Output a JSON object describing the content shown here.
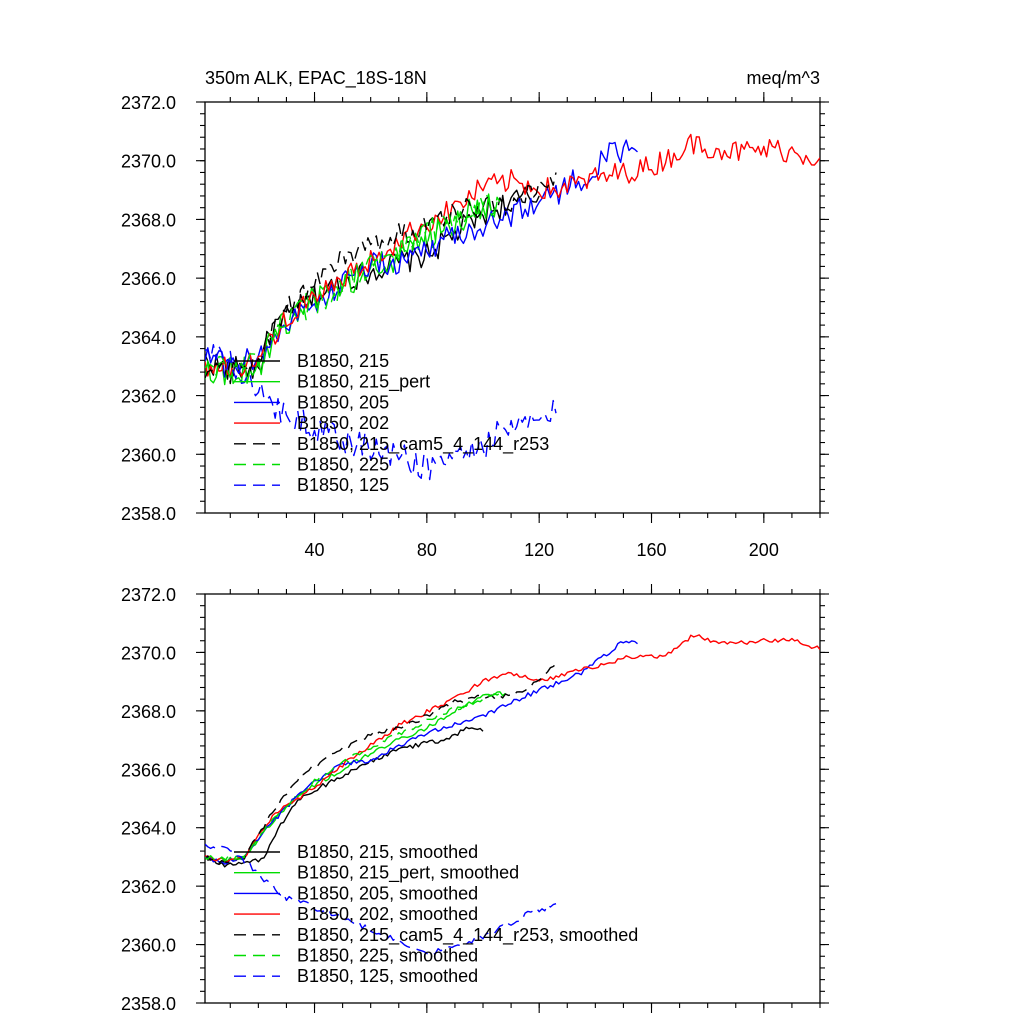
{
  "chart_data": [
    {
      "type": "line",
      "title_left": "350m ALK, EPAC_18S-18N",
      "title_right": "meq/m^3",
      "xlim": [
        1,
        220
      ],
      "ylim": [
        2358.0,
        2372.0
      ],
      "x_ticks": [
        40,
        80,
        120,
        160,
        200
      ],
      "x_tick_labels": [
        "40",
        "80",
        "120",
        "160",
        "200"
      ],
      "y_ticks": [
        2358.0,
        2360.0,
        2362.0,
        2364.0,
        2366.0,
        2368.0,
        2370.0,
        2372.0
      ],
      "y_tick_labels": [
        "2358.0",
        "2360.0",
        "2362.0",
        "2364.0",
        "2366.0",
        "2368.0",
        "2370.0",
        "2372.0"
      ],
      "legend_position": "bottom-left",
      "series": [
        {
          "name": "B1850, 215",
          "color": "#000000",
          "dash": "solid",
          "noise": 0.45,
          "points": [
            [
              1,
              2363.2
            ],
            [
              10,
              2362.9
            ],
            [
              20,
              2362.9
            ],
            [
              25,
              2364.3
            ],
            [
              35,
              2365.0
            ],
            [
              50,
              2365.9
            ],
            [
              65,
              2366.4
            ],
            [
              80,
              2366.8
            ],
            [
              90,
              2367.5
            ],
            [
              100,
              2368.2
            ],
            [
              110,
              2368.6
            ],
            [
              120,
              2368.8
            ]
          ]
        },
        {
          "name": "B1850, 215_pert",
          "color": "#00dd00",
          "dash": "solid",
          "noise": 0.5,
          "points": [
            [
              1,
              2363.0
            ],
            [
              10,
              2362.8
            ],
            [
              20,
              2363.0
            ],
            [
              28,
              2364.3
            ],
            [
              40,
              2365.3
            ],
            [
              55,
              2366.0
            ],
            [
              70,
              2366.8
            ],
            [
              85,
              2367.7
            ],
            [
              95,
              2368.2
            ],
            [
              105,
              2368.6
            ]
          ]
        },
        {
          "name": "B1850, 205",
          "color": "#0000ff",
          "dash": "solid",
          "noise": 0.45,
          "points": [
            [
              1,
              2363.3
            ],
            [
              10,
              2363.0
            ],
            [
              20,
              2363.3
            ],
            [
              30,
              2364.5
            ],
            [
              45,
              2365.4
            ],
            [
              55,
              2366.4
            ],
            [
              70,
              2366.5
            ],
            [
              85,
              2367.3
            ],
            [
              100,
              2367.8
            ],
            [
              120,
              2368.6
            ],
            [
              135,
              2369.4
            ],
            [
              145,
              2370.2
            ],
            [
              155,
              2370.3
            ]
          ]
        },
        {
          "name": "B1850, 202",
          "color": "#ff0000",
          "dash": "solid",
          "noise": 0.4,
          "points": [
            [
              1,
              2363.0
            ],
            [
              10,
              2362.9
            ],
            [
              20,
              2363.3
            ],
            [
              30,
              2364.6
            ],
            [
              45,
              2365.6
            ],
            [
              60,
              2366.6
            ],
            [
              75,
              2367.6
            ],
            [
              90,
              2368.4
            ],
            [
              100,
              2369.1
            ],
            [
              110,
              2369.3
            ],
            [
              125,
              2369.0
            ],
            [
              140,
              2369.4
            ],
            [
              160,
              2369.8
            ],
            [
              175,
              2370.6
            ],
            [
              190,
              2370.3
            ],
            [
              205,
              2370.4
            ],
            [
              220,
              2370.1
            ]
          ]
        },
        {
          "name": "B1850, 215_cam5_4_144_r253",
          "color": "#000000",
          "dash": "dashed",
          "noise": 0.4,
          "points": [
            [
              1,
              2363.0
            ],
            [
              10,
              2362.8
            ],
            [
              20,
              2363.2
            ],
            [
              30,
              2365.0
            ],
            [
              45,
              2366.3
            ],
            [
              60,
              2367.2
            ],
            [
              75,
              2367.6
            ],
            [
              90,
              2368.3
            ],
            [
              105,
              2368.5
            ],
            [
              120,
              2369.0
            ],
            [
              126,
              2369.6
            ]
          ]
        },
        {
          "name": "B1850, 225",
          "color": "#00dd00",
          "dash": "dashed",
          "noise": 0.45,
          "points": [
            [
              1,
              2363.1
            ],
            [
              10,
              2363.0
            ],
            [
              20,
              2363.2
            ],
            [
              30,
              2364.6
            ],
            [
              45,
              2365.4
            ],
            [
              60,
              2366.5
            ],
            [
              75,
              2367.3
            ],
            [
              90,
              2368.0
            ],
            [
              100,
              2368.5
            ],
            [
              106,
              2368.6
            ]
          ]
        },
        {
          "name": "B1850, 125",
          "color": "#0000ff",
          "dash": "dashed",
          "noise": 0.55,
          "points": [
            [
              1,
              2363.4
            ],
            [
              10,
              2363.0
            ],
            [
              20,
              2362.0
            ],
            [
              35,
              2361.2
            ],
            [
              50,
              2360.4
            ],
            [
              65,
              2360.1
            ],
            [
              80,
              2359.6
            ],
            [
              95,
              2360.1
            ],
            [
              110,
              2360.8
            ],
            [
              126,
              2361.4
            ]
          ]
        }
      ]
    },
    {
      "type": "line",
      "xlim": [
        1,
        220
      ],
      "ylim": [
        2358.0,
        2372.0
      ],
      "x_ticks": [
        40,
        80,
        120,
        160,
        200
      ],
      "y_ticks": [
        2358.0,
        2360.0,
        2362.0,
        2364.0,
        2366.0,
        2368.0,
        2370.0,
        2372.0
      ],
      "y_tick_labels": [
        "2358.0",
        "2360.0",
        "2362.0",
        "2364.0",
        "2366.0",
        "2368.0",
        "2370.0",
        "2372.0"
      ],
      "legend_position": "bottom-left",
      "series": [
        {
          "name": "B1850, 215, smoothed",
          "color": "#000000",
          "dash": "solid",
          "noise": 0.08,
          "points": [
            [
              1,
              2363.0
            ],
            [
              8,
              2362.7
            ],
            [
              15,
              2362.8
            ],
            [
              22,
              2362.9
            ],
            [
              27,
              2364.0
            ],
            [
              35,
              2365.0
            ],
            [
              50,
              2365.8
            ],
            [
              65,
              2366.5
            ],
            [
              75,
              2366.8
            ],
            [
              85,
              2367.0
            ],
            [
              95,
              2367.4
            ],
            [
              100,
              2367.3
            ]
          ]
        },
        {
          "name": "B1850, 215_pert, smoothed",
          "color": "#00dd00",
          "dash": "solid",
          "noise": 0.08,
          "points": [
            [
              1,
              2363.0
            ],
            [
              8,
              2362.9
            ],
            [
              15,
              2363.0
            ],
            [
              25,
              2364.2
            ],
            [
              35,
              2365.2
            ],
            [
              50,
              2366.0
            ],
            [
              65,
              2366.8
            ],
            [
              80,
              2367.4
            ],
            [
              90,
              2368.0
            ],
            [
              100,
              2368.5
            ],
            [
              108,
              2368.6
            ]
          ]
        },
        {
          "name": "B1850, 205, smoothed",
          "color": "#0000ff",
          "dash": "solid",
          "noise": 0.08,
          "points": [
            [
              1,
              2363.0
            ],
            [
              8,
              2362.8
            ],
            [
              15,
              2363.0
            ],
            [
              25,
              2364.2
            ],
            [
              35,
              2365.2
            ],
            [
              50,
              2366.2
            ],
            [
              60,
              2366.3
            ],
            [
              70,
              2366.8
            ],
            [
              85,
              2367.4
            ],
            [
              100,
              2367.8
            ],
            [
              115,
              2368.5
            ],
            [
              125,
              2368.9
            ],
            [
              135,
              2369.3
            ],
            [
              145,
              2370.0
            ],
            [
              150,
              2370.4
            ],
            [
              155,
              2370.3
            ]
          ]
        },
        {
          "name": "B1850, 202, smoothed",
          "color": "#ff0000",
          "dash": "solid",
          "noise": 0.08,
          "points": [
            [
              1,
              2363.0
            ],
            [
              8,
              2362.9
            ],
            [
              15,
              2363.0
            ],
            [
              25,
              2364.4
            ],
            [
              40,
              2365.4
            ],
            [
              55,
              2366.5
            ],
            [
              70,
              2367.5
            ],
            [
              85,
              2368.2
            ],
            [
              100,
              2369.0
            ],
            [
              110,
              2369.3
            ],
            [
              120,
              2369.0
            ],
            [
              135,
              2369.4
            ],
            [
              150,
              2369.8
            ],
            [
              165,
              2369.9
            ],
            [
              175,
              2370.6
            ],
            [
              185,
              2370.3
            ],
            [
              200,
              2370.4
            ],
            [
              212,
              2370.4
            ],
            [
              220,
              2370.1
            ]
          ]
        },
        {
          "name": "B1850, 215_cam5_4_144_r253, smoothed",
          "color": "#000000",
          "dash": "dashed",
          "noise": 0.08,
          "points": [
            [
              1,
              2363.0
            ],
            [
              8,
              2362.8
            ],
            [
              15,
              2363.0
            ],
            [
              25,
              2364.5
            ],
            [
              35,
              2365.8
            ],
            [
              50,
              2366.7
            ],
            [
              60,
              2367.2
            ],
            [
              75,
              2367.6
            ],
            [
              90,
              2368.3
            ],
            [
              100,
              2368.5
            ],
            [
              110,
              2368.5
            ],
            [
              120,
              2369.0
            ],
            [
              126,
              2369.6
            ]
          ]
        },
        {
          "name": "B1850, 225, smoothed",
          "color": "#00dd00",
          "dash": "dashed",
          "noise": 0.08,
          "points": [
            [
              1,
              2363.0
            ],
            [
              8,
              2362.9
            ],
            [
              15,
              2363.0
            ],
            [
              25,
              2364.3
            ],
            [
              40,
              2365.6
            ],
            [
              55,
              2366.5
            ],
            [
              70,
              2367.2
            ],
            [
              85,
              2367.9
            ],
            [
              100,
              2368.4
            ],
            [
              106,
              2368.6
            ]
          ]
        },
        {
          "name": "B1850, 125, smoothed",
          "color": "#0000ff",
          "dash": "dashed",
          "noise": 0.1,
          "points": [
            [
              1,
              2363.4
            ],
            [
              8,
              2363.3
            ],
            [
              15,
              2362.9
            ],
            [
              20,
              2362.4
            ],
            [
              30,
              2361.6
            ],
            [
              45,
              2361.1
            ],
            [
              60,
              2360.5
            ],
            [
              70,
              2360.1
            ],
            [
              80,
              2359.7
            ],
            [
              95,
              2360.1
            ],
            [
              105,
              2360.5
            ],
            [
              115,
              2361.0
            ],
            [
              126,
              2361.4
            ]
          ]
        }
      ]
    }
  ]
}
